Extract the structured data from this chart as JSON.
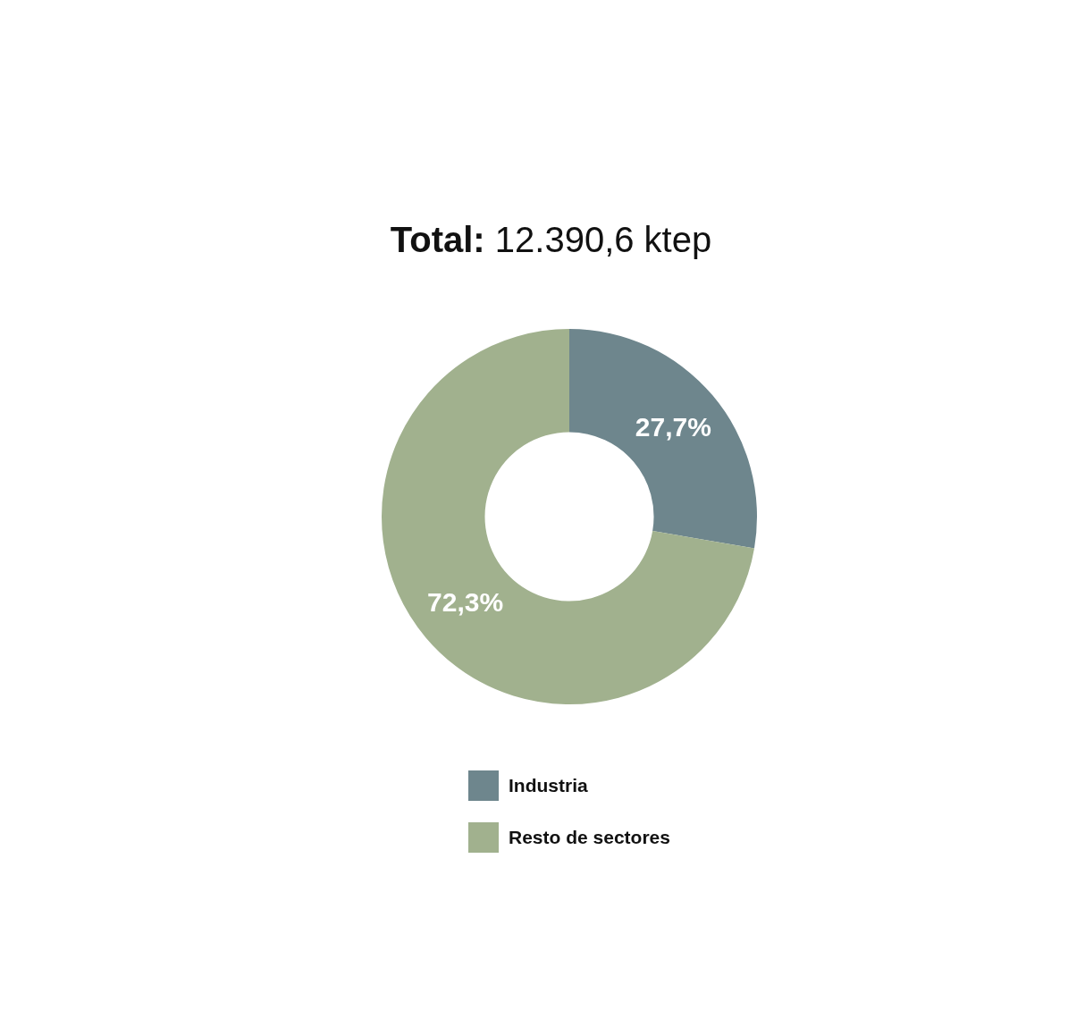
{
  "chart_data": {
    "type": "donut",
    "title": "Total: 12.390,6 ktep",
    "categories": [
      "Industria",
      "Resto de sectores"
    ],
    "values": [
      27.7,
      72.3
    ],
    "colors": [
      "#6e868d",
      "#a1b18e"
    ],
    "value_labels": [
      "27,7%",
      "72,3%"
    ],
    "legend": "bottom"
  }
}
